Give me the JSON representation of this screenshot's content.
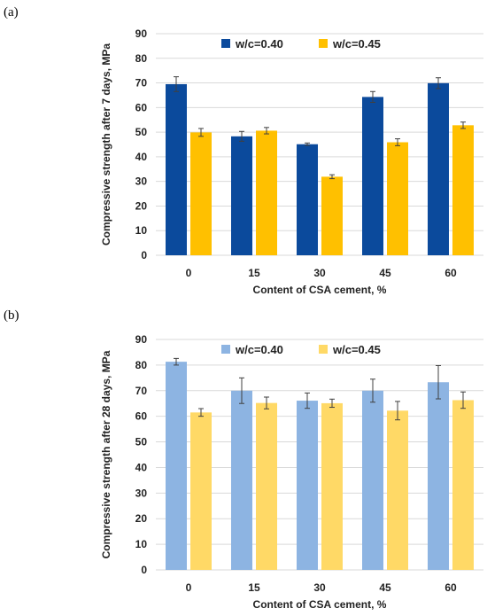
{
  "chart_data": [
    {
      "panel": "(a)",
      "type": "bar",
      "categories": [
        "0",
        "15",
        "30",
        "45",
        "60"
      ],
      "series": [
        {
          "name": "w/c=0.40",
          "color": "#0B4A9C",
          "values": [
            69.5,
            48.3,
            45.1,
            64.3,
            69.9
          ],
          "errors": [
            3.0,
            2.0,
            0.5,
            2.2,
            2.2
          ]
        },
        {
          "name": "w/c=0.45",
          "color": "#FFC000",
          "values": [
            49.9,
            50.6,
            31.9,
            45.9,
            52.8
          ],
          "errors": [
            1.6,
            1.3,
            0.8,
            1.4,
            1.3
          ]
        }
      ],
      "xlabel": "Content of CSA cement, %",
      "ylabel": "Compressive strength after 7 days, MPa",
      "ylim": [
        0,
        90
      ],
      "yticks": [
        "0",
        "10",
        "20",
        "30",
        "40",
        "50",
        "60",
        "70",
        "80",
        "90"
      ],
      "grid": true,
      "legend": "top"
    },
    {
      "panel": "(b)",
      "type": "bar",
      "categories": [
        "0",
        "15",
        "30",
        "45",
        "60"
      ],
      "series": [
        {
          "name": "w/c=0.40",
          "color": "#8DB4E2",
          "values": [
            81.3,
            70.0,
            66.1,
            70.0,
            73.3
          ],
          "errors": [
            1.3,
            5.0,
            3.0,
            4.5,
            6.5
          ]
        },
        {
          "name": "w/c=0.45",
          "color": "#FFD966",
          "values": [
            61.5,
            65.2,
            65.1,
            62.2,
            66.3
          ],
          "errors": [
            1.5,
            2.3,
            1.6,
            3.6,
            3.2
          ]
        }
      ],
      "xlabel": "Content of CSA cement, %",
      "ylabel": "Compressive strength after 28 days, MPa",
      "ylim": [
        0,
        90
      ],
      "yticks": [
        "0",
        "10",
        "20",
        "30",
        "40",
        "50",
        "60",
        "70",
        "80",
        "90"
      ],
      "grid": true,
      "legend": "top"
    }
  ]
}
